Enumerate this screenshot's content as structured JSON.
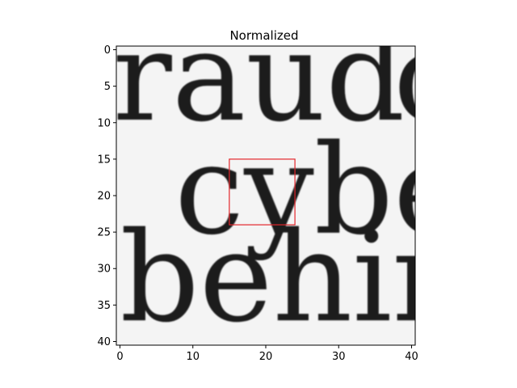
{
  "chart_data": {
    "type": "heatmap",
    "title": "Normalized",
    "xlabel": "",
    "ylabel": "",
    "xlim": [
      -0.5,
      40.5
    ],
    "ylim": [
      40.5,
      -0.5
    ],
    "xticks": [
      0,
      10,
      20,
      30,
      40
    ],
    "yticks": [
      0,
      5,
      10,
      15,
      20,
      25,
      30,
      35,
      40
    ],
    "colormap": "gray",
    "grid": false,
    "image_content": {
      "rows": [
        {
          "text": "raud",
          "center_y": 5,
          "x_start": -1
        },
        {
          "text": "c",
          "center_y": 5,
          "x_start": 37.5
        },
        {
          "text": "cybe",
          "center_y": 20.5,
          "x_start": 7.5
        },
        {
          "text": "behin",
          "center_y": 32.5,
          "x_start": 0
        }
      ]
    },
    "highlight_box": {
      "x": [
        15,
        24
      ],
      "y": [
        15,
        24
      ],
      "color": "#e3262b"
    }
  }
}
